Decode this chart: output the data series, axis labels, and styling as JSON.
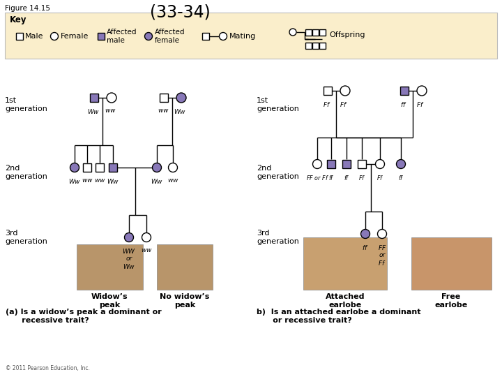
{
  "title": "(33-34)",
  "figure_label": "Figure 14.15",
  "bg_color": "#ffffff",
  "key_bg": "#faeecb",
  "affected_color": "#8878b8",
  "unaffected_color": "#ffffff",
  "shape_edge": "#000000",
  "line_color": "#000000",
  "copyright": "© 2011 Pearson Education, Inc.",
  "widow_peak_label": "Widow’s\npeak",
  "no_widow_peak_label": "No widow’s\npeak",
  "attached_label": "Attached\nearlobe",
  "free_label": "Free\nearlobe",
  "question_a": "(a) Is a widow’s peak a dominant or\n      recessive trait?",
  "question_b": "b)  Is an attached earlobe a dominant\n      or recessive trait?"
}
